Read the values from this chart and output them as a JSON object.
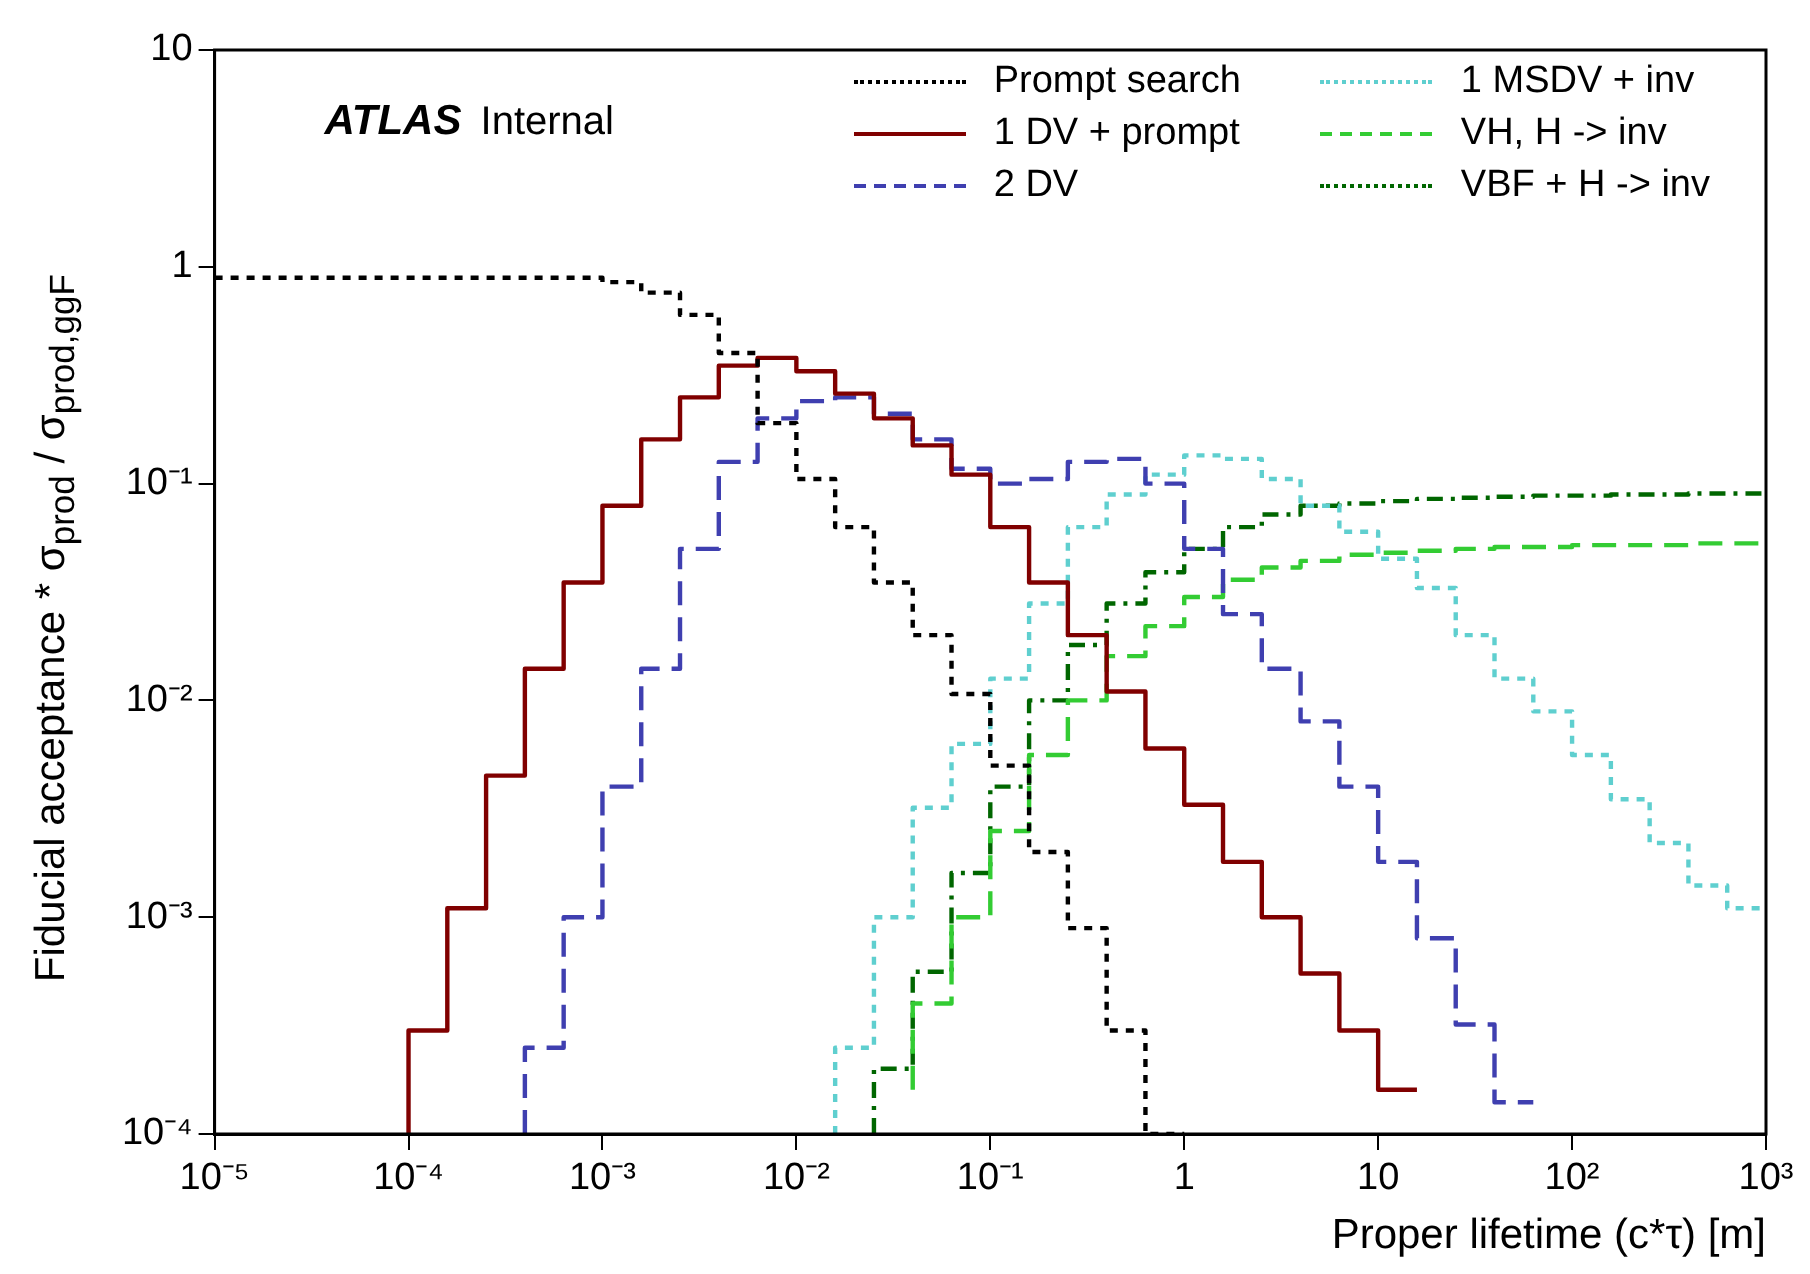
{
  "chart_data": {
    "type": "step",
    "xlabel": "Proper lifetime (c*τ) [m]",
    "ylabel": "Fiducial acceptance * σ$_{prod}$ / σ$_{prod,ggF}$",
    "annotations": [
      "ATLAS Internal"
    ],
    "log": "xy",
    "legend": "top right",
    "marker": "none",
    "xlim": [
      1e-05,
      1000
    ],
    "ylim": [
      0.0001,
      10
    ],
    "xticks": [
      {
        "value": 1e-05,
        "label": "10⁻⁵"
      },
      {
        "value": 0.0001,
        "label": "10⁻⁴"
      },
      {
        "value": 0.001,
        "label": "10⁻³"
      },
      {
        "value": 0.01,
        "label": "10⁻²"
      },
      {
        "value": 0.1,
        "label": "10⁻¹"
      },
      1,
      10,
      {
        "value": 100,
        "label": "10²"
      },
      {
        "value": 1000,
        "label": "10³"
      }
    ],
    "yticks": [
      {
        "value": 0.0001,
        "label": "10⁻⁴"
      },
      {
        "value": 0.001,
        "label": "10⁻³"
      },
      {
        "value": 0.01,
        "label": "10⁻²"
      },
      {
        "value": 0.1,
        "label": "10⁻¹"
      },
      1,
      10
    ],
    "x": [
      1e-05,
      1.585e-05,
      2.512e-05,
      3.981e-05,
      6.31e-05,
      0.0001,
      0.0001585,
      0.0002512,
      0.0003981,
      0.000631,
      0.001,
      0.001585,
      0.002512,
      0.003981,
      0.00631,
      0.01,
      0.01585,
      0.02512,
      0.03981,
      0.0631,
      0.1,
      0.1585,
      0.2512,
      0.3981,
      0.631,
      1,
      1.585,
      2.512,
      3.981,
      6.31,
      10,
      15.85,
      25.12,
      39.81,
      63.1,
      100,
      158.5,
      251.2,
      398.1,
      631,
      1000
    ],
    "series": [
      {
        "name": "Prompt search",
        "color": "#000000",
        "line_style": "dotted",
        "values": [
          0.89,
          0.89,
          0.89,
          0.89,
          0.89,
          0.89,
          0.89,
          0.89,
          0.89,
          0.89,
          0.89,
          0.85,
          0.76,
          0.6,
          0.4,
          0.19,
          0.105,
          0.063,
          0.035,
          0.02,
          0.0107,
          0.005,
          0.002,
          0.00089,
          0.0003,
          0.0001,
          null,
          null,
          null,
          null,
          null,
          null,
          null,
          null,
          null,
          null,
          null,
          null,
          null,
          null,
          null
        ]
      },
      {
        "name": "1 DV + prompt",
        "color": "#800000",
        "line_style": "solid",
        "values": [
          null,
          null,
          null,
          null,
          null,
          0.0001,
          0.0003,
          0.0011,
          0.0045,
          0.014,
          0.035,
          0.079,
          0.16,
          0.25,
          0.35,
          0.38,
          0.33,
          0.26,
          0.2,
          0.15,
          0.11,
          0.063,
          0.035,
          0.02,
          0.011,
          0.006,
          0.0033,
          0.0018,
          0.001,
          0.00055,
          0.0003,
          0.00016,
          null,
          null,
          null,
          null,
          null,
          null,
          null,
          null,
          null
        ]
      },
      {
        "name": "2 DV",
        "color": "#3f3fb0",
        "line_style": "dashed",
        "values": [
          null,
          null,
          null,
          null,
          null,
          null,
          null,
          null,
          0.0001,
          0.00025,
          0.001,
          0.004,
          0.014,
          0.05,
          0.126,
          0.2,
          0.24,
          0.25,
          0.21,
          0.16,
          0.117,
          0.1,
          0.105,
          0.126,
          0.13,
          0.1,
          0.05,
          0.025,
          0.014,
          0.008,
          0.004,
          0.0018,
          0.0008,
          0.00032,
          0.00014,
          null,
          null,
          null,
          null,
          null,
          null
        ]
      },
      {
        "name": "1 MSDV + inv",
        "color": "#5fcfcf",
        "line_style": "dotted",
        "values": [
          null,
          null,
          null,
          null,
          null,
          null,
          null,
          null,
          null,
          null,
          null,
          null,
          null,
          null,
          null,
          null,
          0.0001,
          0.00025,
          0.001,
          0.0032,
          0.0063,
          0.0126,
          0.028,
          0.063,
          0.089,
          0.11,
          0.135,
          0.13,
          0.105,
          0.079,
          0.06,
          0.045,
          0.033,
          0.02,
          0.0126,
          0.0089,
          0.0056,
          0.0035,
          0.0022,
          0.0014,
          0.0011
        ]
      },
      {
        "name": "VH, H -> inv",
        "color": "#33cc33",
        "line_style": "dashed",
        "values": [
          null,
          null,
          null,
          null,
          null,
          null,
          null,
          null,
          null,
          null,
          null,
          null,
          null,
          null,
          null,
          null,
          null,
          null,
          0.00016,
          0.0004,
          0.001,
          0.0025,
          0.0056,
          0.01,
          0.016,
          0.022,
          0.03,
          0.036,
          0.041,
          0.044,
          0.047,
          0.048,
          0.049,
          0.05,
          0.051,
          0.051,
          0.052,
          0.052,
          0.052,
          0.053,
          0.053
        ]
      },
      {
        "name": "VBF + H -> inv",
        "color": "#006600",
        "line_style": "dashdot",
        "values": [
          null,
          null,
          null,
          null,
          null,
          null,
          null,
          null,
          null,
          null,
          null,
          null,
          null,
          null,
          null,
          null,
          null,
          0.0001,
          0.0002,
          0.00056,
          0.0016,
          0.004,
          0.01,
          0.018,
          0.028,
          0.039,
          0.05,
          0.063,
          0.072,
          0.079,
          0.081,
          0.083,
          0.085,
          0.086,
          0.087,
          0.088,
          0.088,
          0.089,
          0.089,
          0.09,
          0.09
        ]
      }
    ]
  }
}
